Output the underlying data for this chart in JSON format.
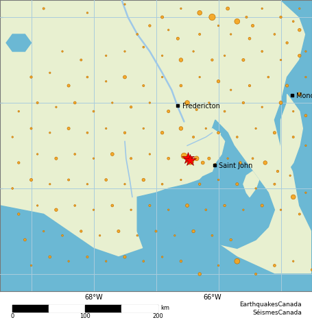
{
  "land_color": "#e8f0d0",
  "water_color": "#6bb8d4",
  "grid_color": "#aaccdd",
  "lon_min": -69.5,
  "lon_max": -64.5,
  "lat_min": 43.8,
  "lat_max": 47.2,
  "grid_lons": [
    -69,
    -68,
    -67,
    -66,
    -65
  ],
  "grid_lats": [
    44,
    45,
    46,
    47
  ],
  "cities": [
    {
      "name": "Fredericton",
      "lon": -66.65,
      "lat": 45.97
    },
    {
      "name": "Saint John",
      "lon": -66.06,
      "lat": 45.27
    },
    {
      "name": "Moncton",
      "lon": -64.82,
      "lat": 46.09
    }
  ],
  "earthquakes": [
    {
      "lon": -68.8,
      "lat": 47.1,
      "mag": 2.5
    },
    {
      "lon": -68.1,
      "lat": 47.05,
      "mag": 2.2
    },
    {
      "lon": -67.5,
      "lat": 47.15,
      "mag": 2.3
    },
    {
      "lon": -66.9,
      "lat": 47.0,
      "mag": 2.8
    },
    {
      "lon": -66.6,
      "lat": 47.1,
      "mag": 2.1
    },
    {
      "lon": -66.3,
      "lat": 47.05,
      "mag": 3.5
    },
    {
      "lon": -66.1,
      "lat": 47.0,
      "mag": 4.2
    },
    {
      "lon": -65.85,
      "lat": 47.1,
      "mag": 3.0
    },
    {
      "lon": -65.7,
      "lat": 46.95,
      "mag": 3.8
    },
    {
      "lon": -65.55,
      "lat": 47.0,
      "mag": 2.5
    },
    {
      "lon": -65.45,
      "lat": 46.9,
      "mag": 2.8
    },
    {
      "lon": -65.3,
      "lat": 47.1,
      "mag": 2.3
    },
    {
      "lon": -65.0,
      "lat": 47.0,
      "mag": 2.6
    },
    {
      "lon": -64.8,
      "lat": 46.95,
      "mag": 2.4
    },
    {
      "lon": -64.7,
      "lat": 47.1,
      "mag": 2.2
    },
    {
      "lon": -67.3,
      "lat": 46.8,
      "mag": 2.4
    },
    {
      "lon": -67.1,
      "lat": 46.9,
      "mag": 2.6
    },
    {
      "lon": -66.8,
      "lat": 46.85,
      "mag": 2.2
    },
    {
      "lon": -66.65,
      "lat": 46.75,
      "mag": 2.8
    },
    {
      "lon": -66.3,
      "lat": 46.8,
      "mag": 2.5
    },
    {
      "lon": -66.0,
      "lat": 46.9,
      "mag": 2.3
    },
    {
      "lon": -65.8,
      "lat": 46.8,
      "mag": 2.1
    },
    {
      "lon": -65.5,
      "lat": 46.75,
      "mag": 2.7
    },
    {
      "lon": -65.1,
      "lat": 46.8,
      "mag": 2.4
    },
    {
      "lon": -64.9,
      "lat": 46.7,
      "mag": 2.6
    },
    {
      "lon": -64.7,
      "lat": 46.85,
      "mag": 2.9
    },
    {
      "lon": -64.6,
      "lat": 46.6,
      "mag": 2.2
    },
    {
      "lon": -68.5,
      "lat": 46.6,
      "mag": 2.3
    },
    {
      "lon": -68.2,
      "lat": 46.5,
      "mag": 2.5
    },
    {
      "lon": -67.8,
      "lat": 46.55,
      "mag": 2.2
    },
    {
      "lon": -67.5,
      "lat": 46.6,
      "mag": 2.0
    },
    {
      "lon": -67.2,
      "lat": 46.65,
      "mag": 2.4
    },
    {
      "lon": -66.9,
      "lat": 46.55,
      "mag": 2.1
    },
    {
      "lon": -66.6,
      "lat": 46.5,
      "mag": 3.2
    },
    {
      "lon": -66.4,
      "lat": 46.6,
      "mag": 2.3
    },
    {
      "lon": -66.1,
      "lat": 46.5,
      "mag": 2.6
    },
    {
      "lon": -65.9,
      "lat": 46.55,
      "mag": 2.2
    },
    {
      "lon": -65.6,
      "lat": 46.5,
      "mag": 2.8
    },
    {
      "lon": -65.3,
      "lat": 46.6,
      "mag": 2.4
    },
    {
      "lon": -65.0,
      "lat": 46.5,
      "mag": 2.1
    },
    {
      "lon": -64.7,
      "lat": 46.55,
      "mag": 2.9
    },
    {
      "lon": -64.6,
      "lat": 46.3,
      "mag": 2.3
    },
    {
      "lon": -69.0,
      "lat": 46.3,
      "mag": 2.6
    },
    {
      "lon": -68.7,
      "lat": 46.35,
      "mag": 2.1
    },
    {
      "lon": -68.4,
      "lat": 46.2,
      "mag": 2.8
    },
    {
      "lon": -68.1,
      "lat": 46.3,
      "mag": 2.4
    },
    {
      "lon": -67.8,
      "lat": 46.25,
      "mag": 2.2
    },
    {
      "lon": -67.5,
      "lat": 46.3,
      "mag": 3.0
    },
    {
      "lon": -67.2,
      "lat": 46.2,
      "mag": 2.5
    },
    {
      "lon": -66.9,
      "lat": 46.3,
      "mag": 2.1
    },
    {
      "lon": -66.6,
      "lat": 46.2,
      "mag": 2.7
    },
    {
      "lon": -66.3,
      "lat": 46.3,
      "mag": 2.3
    },
    {
      "lon": -66.0,
      "lat": 46.25,
      "mag": 2.9
    },
    {
      "lon": -65.8,
      "lat": 46.15,
      "mag": 2.2
    },
    {
      "lon": -65.5,
      "lat": 46.2,
      "mag": 2.6
    },
    {
      "lon": -65.2,
      "lat": 46.3,
      "mag": 2.4
    },
    {
      "lon": -64.9,
      "lat": 46.2,
      "mag": 2.8
    },
    {
      "lon": -64.7,
      "lat": 46.1,
      "mag": 3.1
    },
    {
      "lon": -69.2,
      "lat": 45.9,
      "mag": 2.3
    },
    {
      "lon": -68.9,
      "lat": 46.0,
      "mag": 2.5
    },
    {
      "lon": -68.6,
      "lat": 45.95,
      "mag": 2.1
    },
    {
      "lon": -68.3,
      "lat": 46.0,
      "mag": 2.7
    },
    {
      "lon": -68.0,
      "lat": 45.9,
      "mag": 2.4
    },
    {
      "lon": -67.7,
      "lat": 46.0,
      "mag": 2.2
    },
    {
      "lon": -67.4,
      "lat": 45.95,
      "mag": 2.6
    },
    {
      "lon": -67.1,
      "lat": 46.0,
      "mag": 2.3
    },
    {
      "lon": -66.8,
      "lat": 45.9,
      "mag": 2.8
    },
    {
      "lon": -66.5,
      "lat": 46.0,
      "mag": 3.5
    },
    {
      "lon": -66.35,
      "lat": 45.92,
      "mag": 2.5
    },
    {
      "lon": -66.15,
      "lat": 46.0,
      "mag": 2.1
    },
    {
      "lon": -65.9,
      "lat": 45.9,
      "mag": 2.4
    },
    {
      "lon": -65.6,
      "lat": 46.0,
      "mag": 2.6
    },
    {
      "lon": -65.3,
      "lat": 45.95,
      "mag": 2.2
    },
    {
      "lon": -65.0,
      "lat": 46.0,
      "mag": 3.0
    },
    {
      "lon": -64.8,
      "lat": 45.9,
      "mag": 2.3
    },
    {
      "lon": -64.6,
      "lat": 45.85,
      "mag": 2.7
    },
    {
      "lon": -69.3,
      "lat": 45.6,
      "mag": 2.2
    },
    {
      "lon": -69.0,
      "lat": 45.7,
      "mag": 2.5
    },
    {
      "lon": -68.7,
      "lat": 45.65,
      "mag": 2.0
    },
    {
      "lon": -68.4,
      "lat": 45.7,
      "mag": 2.8
    },
    {
      "lon": -68.1,
      "lat": 45.65,
      "mag": 2.4
    },
    {
      "lon": -67.8,
      "lat": 45.7,
      "mag": 2.1
    },
    {
      "lon": -67.5,
      "lat": 45.65,
      "mag": 2.6
    },
    {
      "lon": -67.2,
      "lat": 45.7,
      "mag": 2.3
    },
    {
      "lon": -66.9,
      "lat": 45.65,
      "mag": 2.9
    },
    {
      "lon": -66.6,
      "lat": 45.7,
      "mag": 3.2
    },
    {
      "lon": -66.4,
      "lat": 45.6,
      "mag": 2.5
    },
    {
      "lon": -66.2,
      "lat": 45.7,
      "mag": 2.1
    },
    {
      "lon": -66.0,
      "lat": 45.65,
      "mag": 2.7
    },
    {
      "lon": -65.7,
      "lat": 45.6,
      "mag": 2.4
    },
    {
      "lon": -65.4,
      "lat": 45.7,
      "mag": 2.2
    },
    {
      "lon": -65.1,
      "lat": 45.65,
      "mag": 2.8
    },
    {
      "lon": -64.8,
      "lat": 45.6,
      "mag": 2.5
    },
    {
      "lon": -64.6,
      "lat": 45.5,
      "mag": 2.3
    },
    {
      "lon": -69.2,
      "lat": 45.3,
      "mag": 2.6
    },
    {
      "lon": -68.9,
      "lat": 45.4,
      "mag": 2.1
    },
    {
      "lon": -68.6,
      "lat": 45.35,
      "mag": 2.8
    },
    {
      "lon": -68.3,
      "lat": 45.4,
      "mag": 2.4
    },
    {
      "lon": -68.0,
      "lat": 45.35,
      "mag": 2.2
    },
    {
      "lon": -67.7,
      "lat": 45.4,
      "mag": 3.0
    },
    {
      "lon": -67.4,
      "lat": 45.35,
      "mag": 2.5
    },
    {
      "lon": -67.1,
      "lat": 45.4,
      "mag": 2.1
    },
    {
      "lon": -66.8,
      "lat": 45.35,
      "mag": 2.7
    },
    {
      "lon": -66.55,
      "lat": 45.38,
      "mag": 4.0
    },
    {
      "lon": -66.45,
      "lat": 45.32,
      "mag": 4.5
    },
    {
      "lon": -66.35,
      "lat": 45.35,
      "mag": 3.5
    },
    {
      "lon": -66.25,
      "lat": 45.3,
      "mag": 3.0
    },
    {
      "lon": -66.15,
      "lat": 45.35,
      "mag": 2.8
    },
    {
      "lon": -66.05,
      "lat": 45.28,
      "mag": 2.5
    },
    {
      "lon": -65.85,
      "lat": 45.35,
      "mag": 2.3
    },
    {
      "lon": -65.65,
      "lat": 45.3,
      "mag": 2.7
    },
    {
      "lon": -65.45,
      "lat": 45.35,
      "mag": 2.4
    },
    {
      "lon": -65.25,
      "lat": 45.3,
      "mag": 3.2
    },
    {
      "lon": -65.05,
      "lat": 45.2,
      "mag": 2.6
    },
    {
      "lon": -64.85,
      "lat": 45.15,
      "mag": 2.2
    },
    {
      "lon": -69.3,
      "lat": 45.0,
      "mag": 2.4
    },
    {
      "lon": -69.0,
      "lat": 45.1,
      "mag": 2.8
    },
    {
      "lon": -68.7,
      "lat": 45.05,
      "mag": 2.1
    },
    {
      "lon": -68.4,
      "lat": 45.1,
      "mag": 2.5
    },
    {
      "lon": -68.1,
      "lat": 45.05,
      "mag": 2.3
    },
    {
      "lon": -67.8,
      "lat": 45.1,
      "mag": 2.7
    },
    {
      "lon": -67.5,
      "lat": 45.05,
      "mag": 2.0
    },
    {
      "lon": -67.2,
      "lat": 45.1,
      "mag": 2.9
    },
    {
      "lon": -66.9,
      "lat": 45.05,
      "mag": 2.4
    },
    {
      "lon": -66.6,
      "lat": 45.1,
      "mag": 2.2
    },
    {
      "lon": -66.3,
      "lat": 45.05,
      "mag": 2.6
    },
    {
      "lon": -66.0,
      "lat": 45.1,
      "mag": 2.3
    },
    {
      "lon": -65.7,
      "lat": 45.05,
      "mag": 2.8
    },
    {
      "lon": -65.4,
      "lat": 45.0,
      "mag": 2.1
    },
    {
      "lon": -65.1,
      "lat": 45.05,
      "mag": 2.5
    },
    {
      "lon": -64.8,
      "lat": 44.9,
      "mag": 3.5
    },
    {
      "lon": -64.6,
      "lat": 44.95,
      "mag": 2.3
    },
    {
      "lon": -69.2,
      "lat": 44.7,
      "mag": 2.6
    },
    {
      "lon": -68.9,
      "lat": 44.8,
      "mag": 2.2
    },
    {
      "lon": -68.6,
      "lat": 44.75,
      "mag": 2.9
    },
    {
      "lon": -68.3,
      "lat": 44.8,
      "mag": 2.4
    },
    {
      "lon": -68.0,
      "lat": 44.75,
      "mag": 2.1
    },
    {
      "lon": -67.7,
      "lat": 44.8,
      "mag": 2.7
    },
    {
      "lon": -67.4,
      "lat": 44.75,
      "mag": 2.3
    },
    {
      "lon": -67.1,
      "lat": 44.8,
      "mag": 2.5
    },
    {
      "lon": -66.8,
      "lat": 44.75,
      "mag": 2.2
    },
    {
      "lon": -66.5,
      "lat": 44.8,
      "mag": 3.0
    },
    {
      "lon": -66.2,
      "lat": 44.75,
      "mag": 2.4
    },
    {
      "lon": -65.9,
      "lat": 44.8,
      "mag": 2.6
    },
    {
      "lon": -65.6,
      "lat": 44.75,
      "mag": 2.1
    },
    {
      "lon": -65.3,
      "lat": 44.8,
      "mag": 2.8
    },
    {
      "lon": -65.0,
      "lat": 44.75,
      "mag": 2.3
    },
    {
      "lon": -64.7,
      "lat": 44.7,
      "mag": 2.5
    },
    {
      "lon": -69.1,
      "lat": 44.4,
      "mag": 2.7
    },
    {
      "lon": -68.8,
      "lat": 44.5,
      "mag": 2.1
    },
    {
      "lon": -68.5,
      "lat": 44.45,
      "mag": 2.4
    },
    {
      "lon": -68.2,
      "lat": 44.5,
      "mag": 2.6
    },
    {
      "lon": -67.9,
      "lat": 44.45,
      "mag": 2.2
    },
    {
      "lon": -67.6,
      "lat": 44.5,
      "mag": 2.8
    },
    {
      "lon": -67.3,
      "lat": 44.45,
      "mag": 2.3
    },
    {
      "lon": -67.0,
      "lat": 44.5,
      "mag": 2.5
    },
    {
      "lon": -66.7,
      "lat": 44.45,
      "mag": 2.1
    },
    {
      "lon": -66.4,
      "lat": 44.5,
      "mag": 2.9
    },
    {
      "lon": -66.1,
      "lat": 44.45,
      "mag": 2.4
    },
    {
      "lon": -65.8,
      "lat": 44.4,
      "mag": 2.6
    },
    {
      "lon": -69.0,
      "lat": 44.1,
      "mag": 2.3
    },
    {
      "lon": -68.7,
      "lat": 44.2,
      "mag": 2.7
    },
    {
      "lon": -68.4,
      "lat": 44.15,
      "mag": 2.1
    },
    {
      "lon": -68.1,
      "lat": 44.2,
      "mag": 2.5
    },
    {
      "lon": -67.8,
      "lat": 44.15,
      "mag": 2.3
    },
    {
      "lon": -67.5,
      "lat": 44.2,
      "mag": 2.8
    },
    {
      "lon": -67.2,
      "lat": 44.15,
      "mag": 2.4
    },
    {
      "lon": -66.9,
      "lat": 44.2,
      "mag": 2.1
    },
    {
      "lon": -66.6,
      "lat": 44.15,
      "mag": 2.6
    },
    {
      "lon": -66.3,
      "lat": 44.0,
      "mag": 2.9
    },
    {
      "lon": -66.0,
      "lat": 44.1,
      "mag": 2.2
    },
    {
      "lon": -65.7,
      "lat": 44.15,
      "mag": 3.8
    },
    {
      "lon": -65.4,
      "lat": 44.0,
      "mag": 2.5
    },
    {
      "lon": -65.1,
      "lat": 44.1,
      "mag": 2.7
    },
    {
      "lon": -64.8,
      "lat": 44.15,
      "mag": 2.3
    },
    {
      "lon": -64.5,
      "lat": 44.05,
      "mag": 2.6
    }
  ],
  "epicenters": [
    {
      "lon": -66.49,
      "lat": 45.35
    },
    {
      "lon": -66.46,
      "lat": 45.33
    }
  ],
  "river_color": "#9ec8e8",
  "eq_color": "#f5a623",
  "eq_edge": "#c07000",
  "star_color": "red",
  "label_font_size": 7,
  "xlabel_68W": "68°W",
  "xlabel_66W": "66°W",
  "brand_line1": "EarthquakesCanada",
  "brand_line2": "SéismesCanada"
}
